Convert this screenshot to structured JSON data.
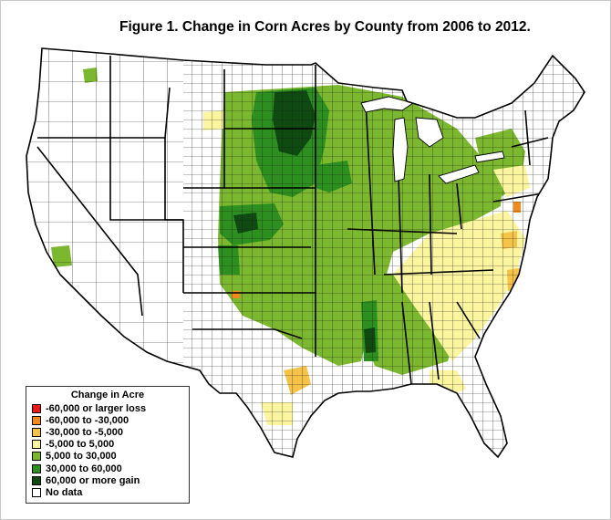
{
  "title": "Figure 1.  Change in Corn Acres by County from 2006 to 2012.",
  "legend": {
    "title": "Change in Acre",
    "items": [
      {
        "label": "-60,000 or larger loss",
        "color": "#e8191b"
      },
      {
        "label": "-60,000 to -30,000",
        "color": "#f08a1c"
      },
      {
        "label": "-30,000 to  -5,000",
        "color": "#f5c34a"
      },
      {
        "label": "-5,000 to 5,000",
        "color": "#fbf5a0"
      },
      {
        "label": "5,000 to 30,000",
        "color": "#7cb82f"
      },
      {
        "label": "30,000 to 60,000",
        "color": "#2c8f1f"
      },
      {
        "label": "60,000 or more gain",
        "color": "#0f4a12"
      },
      {
        "label": "No data",
        "color": "#ffffff"
      }
    ]
  },
  "map": {
    "region": "Contiguous United States",
    "units": "counties",
    "palette": {
      "gain_light": "#7cb82f",
      "gain_mid": "#2c8f1f",
      "gain_dark": "#0f4a12",
      "neutral": "#fbf5a0",
      "loss_light": "#f5c34a",
      "loss_mid": "#f08a1c",
      "loss_heavy": "#e8191b",
      "no_data": "#ffffff"
    }
  }
}
